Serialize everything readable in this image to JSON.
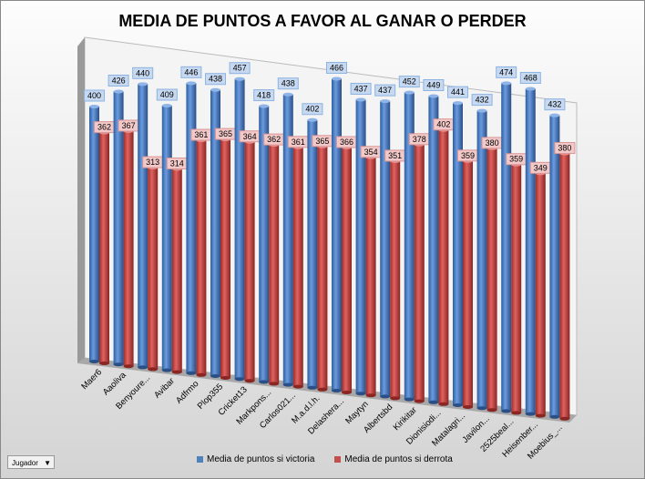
{
  "chart_data": {
    "type": "bar",
    "title": "MEDIA DE PUNTOS A FAVOR AL GANAR O PERDER",
    "categories": [
      "Maer6",
      "Aaoliva",
      "Benyoure...",
      "Avibar",
      "Adfrmo",
      "Plop355",
      "Cricket13",
      "Markpons...",
      "Carlos021...",
      "M.a.d.l.h.",
      "Delashera...",
      "Maytyn",
      "Albertsbd",
      "Kirikitar",
      "Dionisiodi...",
      "Matalagri...",
      "Javilon...",
      "2525beal...",
      "Heisenber...",
      "Moebius_..."
    ],
    "series": [
      {
        "name": "Media de puntos si victoria",
        "color": "#4f81bd",
        "values": [
          400,
          426,
          440,
          409,
          446,
          438,
          457,
          418,
          438,
          402,
          466,
          437,
          437,
          452,
          449,
          441,
          432,
          474,
          468,
          432
        ]
      },
      {
        "name": "Media de puntos si derrota",
        "color": "#c0504d",
        "values": [
          362,
          367,
          313,
          314,
          361,
          365,
          364,
          362,
          361,
          365,
          366,
          354,
          351,
          378,
          402,
          359,
          380,
          359,
          349,
          380
        ]
      }
    ],
    "xlabel": "",
    "ylabel": "",
    "legend": "bottom"
  },
  "filter": {
    "label": "Jugador"
  }
}
